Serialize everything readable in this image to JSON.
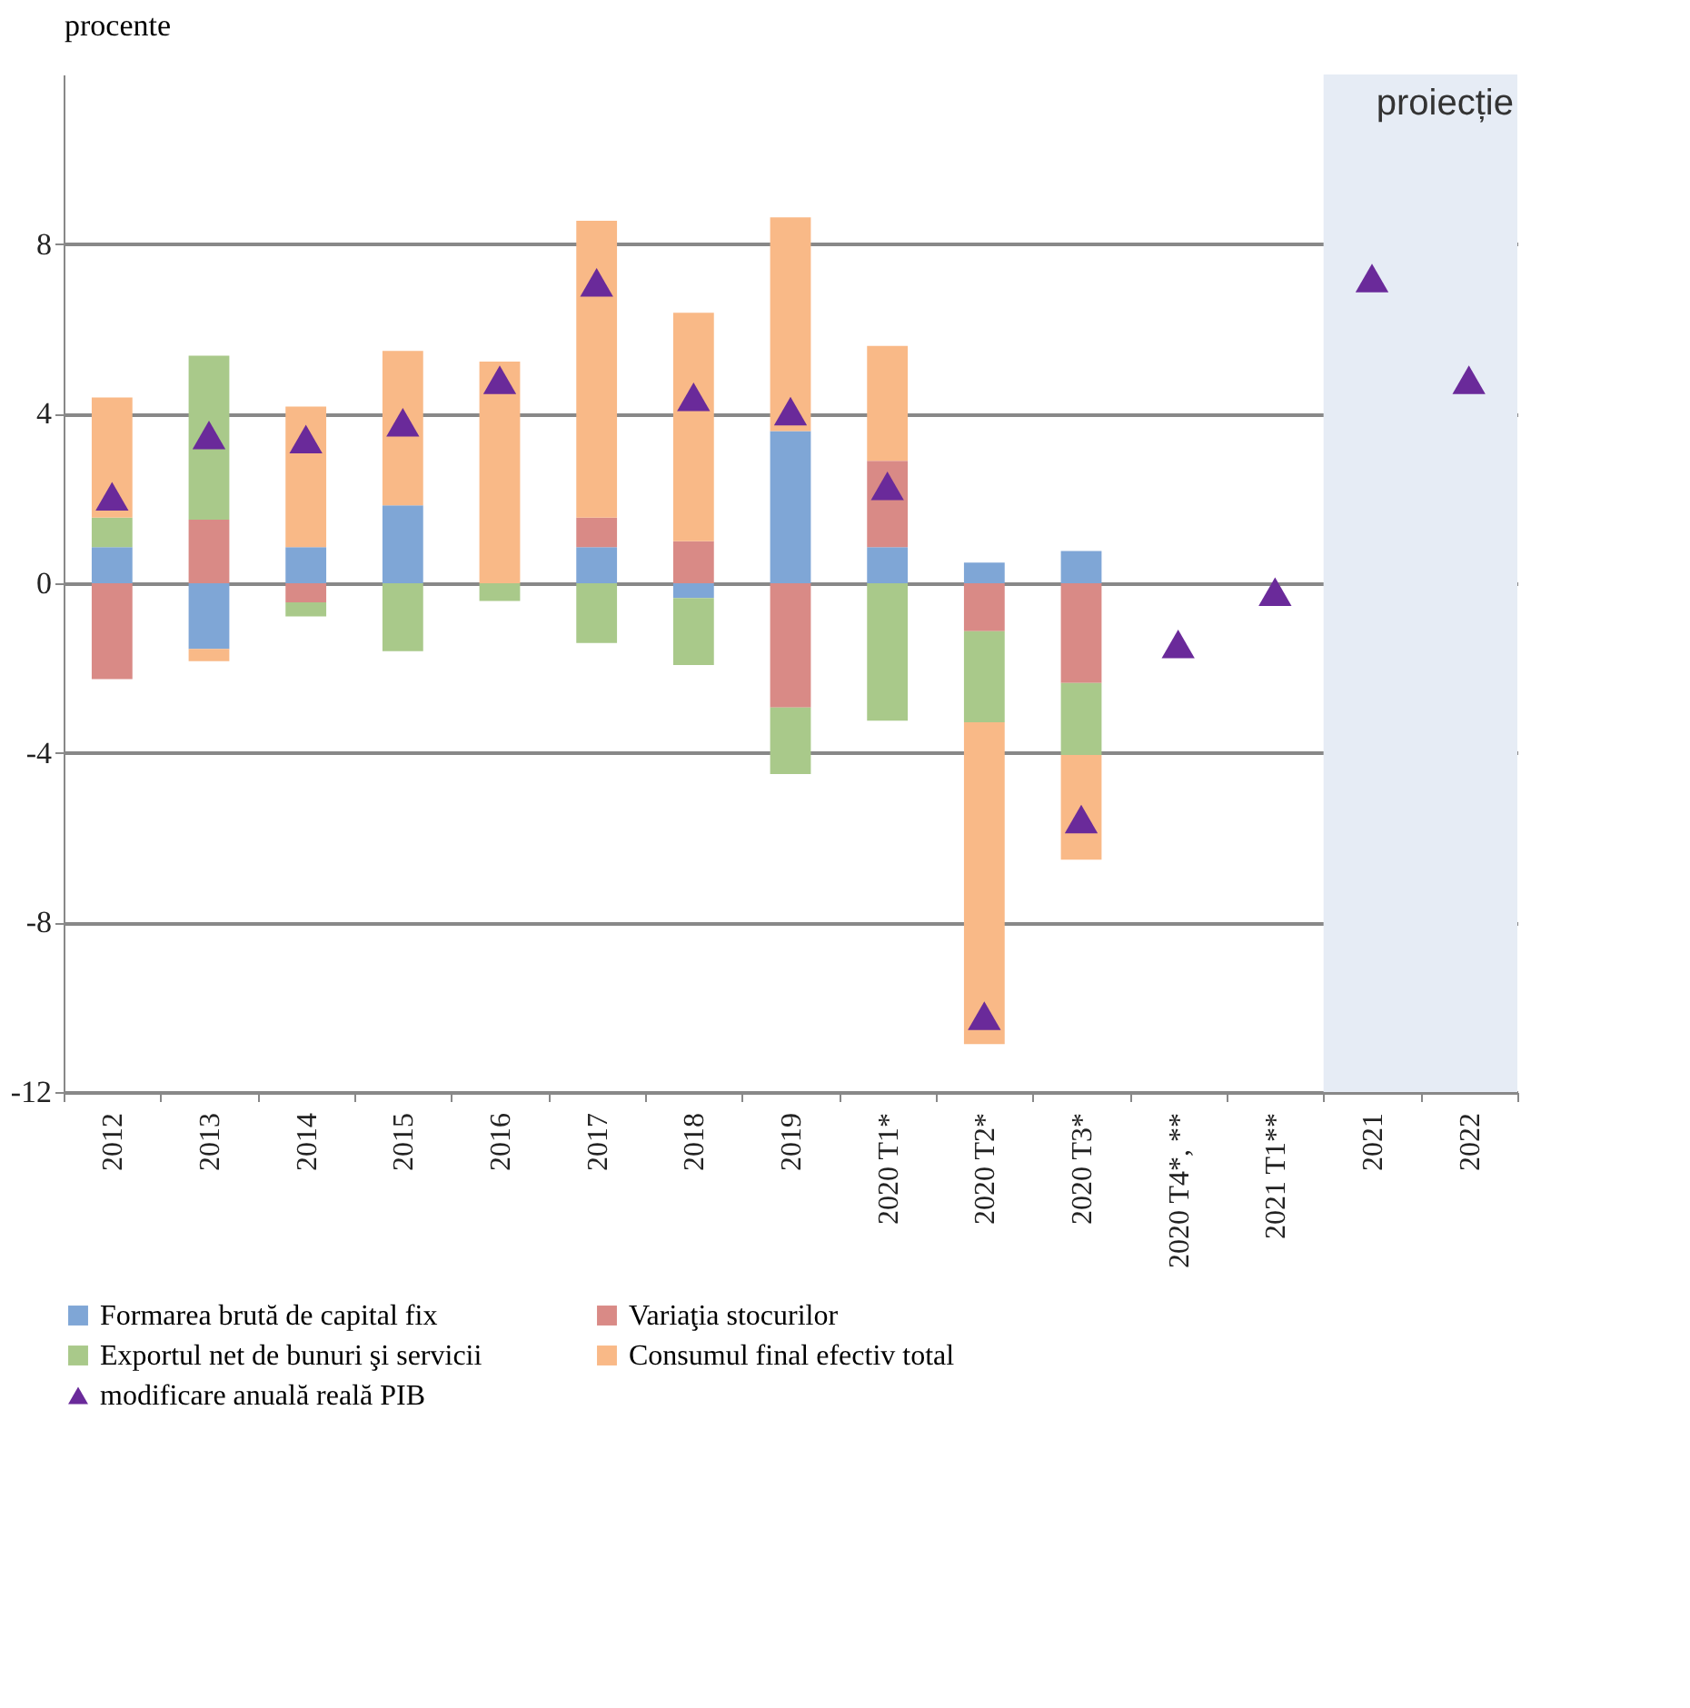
{
  "chart_data": {
    "type": "bar",
    "stacked": true,
    "ylabel": "procente",
    "categories": [
      "2012",
      "2013",
      "2014",
      "2015",
      "2016",
      "2017",
      "2018",
      "2019",
      "2020 T1*",
      "2020 T2*",
      "2020 T3*",
      "2020 T4*, **",
      "2021 T1**",
      "2021",
      "2022"
    ],
    "series": [
      {
        "name": "Formarea brută de capital fix",
        "color": "#7fa6d6",
        "values": [
          0.85,
          -1.55,
          0.85,
          1.84,
          null,
          0.85,
          -0.35,
          3.59,
          0.85,
          0.49,
          0.76,
          null,
          null,
          null,
          null
        ]
      },
      {
        "name": "Variaţia stocurilor",
        "color": "#d98a86",
        "values": [
          -2.26,
          1.5,
          -0.45,
          null,
          null,
          0.7,
          0.99,
          -2.93,
          2.04,
          -1.13,
          -2.35,
          null,
          null,
          null,
          null
        ]
      },
      {
        "name": "Exportul net de bunuri şi servicii",
        "color": "#a9c98a",
        "values": [
          0.7,
          3.87,
          -0.33,
          -1.6,
          -0.42,
          -1.41,
          -1.58,
          -1.57,
          -3.24,
          -2.15,
          -1.7,
          null,
          null,
          null,
          null
        ]
      },
      {
        "name": "Consumul final  efectiv total",
        "color": "#f9b987",
        "values": [
          2.83,
          -0.29,
          3.32,
          3.64,
          5.23,
          7.0,
          5.39,
          5.04,
          2.71,
          -7.59,
          -2.47,
          null,
          null,
          null,
          null
        ]
      },
      {
        "name": "modificare anuală reală PIB",
        "type": "scatter",
        "marker": "triangle",
        "color": "#6a2a9a",
        "values": [
          2.05,
          3.5,
          3.4,
          3.8,
          4.8,
          7.1,
          4.4,
          4.06,
          2.3,
          -10.2,
          -5.56,
          -1.43,
          -0.2,
          7.2,
          4.8
        ]
      }
    ],
    "ylim": [
      -12,
      12
    ],
    "yticks": [
      -12,
      -8,
      -4,
      0,
      4,
      8
    ],
    "grid": "y",
    "legend": "bottom",
    "bands": [
      {
        "axis": "x",
        "from": "2021",
        "to": "2022",
        "label": "proiecție",
        "color": "#e6ecf5"
      }
    ]
  }
}
